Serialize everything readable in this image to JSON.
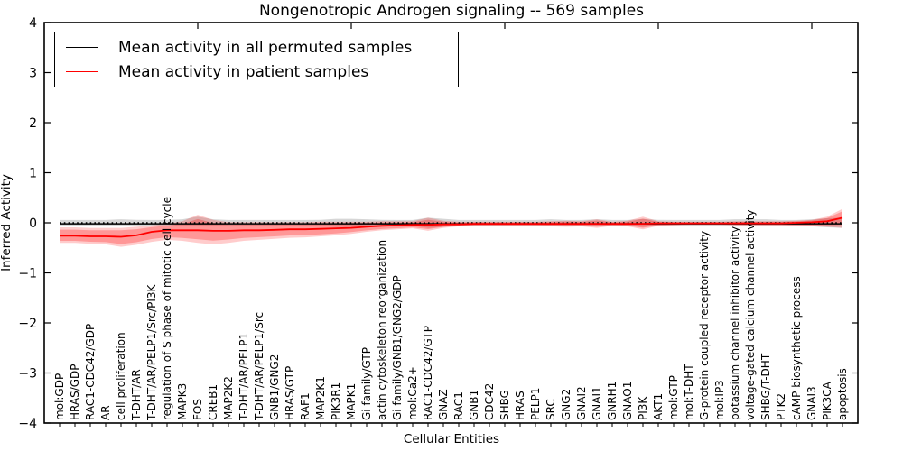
{
  "page": {
    "background": "#ffffff"
  },
  "legend": {
    "entries": [
      {
        "label": "Mean activity in all permuted samples",
        "color": "#000000"
      },
      {
        "label": "Mean activity in patient samples",
        "color": "#ff0000"
      }
    ]
  },
  "chart_data": {
    "type": "line",
    "title": "Nongenotropic Androgen signaling -- 569 samples",
    "xlabel": "Cellular Entities",
    "ylabel": "Inferred Activity",
    "ylim": [
      -4,
      4
    ],
    "yticks": [
      4,
      3,
      2,
      1,
      0,
      -1,
      -2,
      -3,
      -4
    ],
    "ytick_labels": [
      "4",
      "3",
      "2",
      "1",
      "0",
      "−1",
      "−2",
      "−3",
      "−4"
    ],
    "xticks_top_positions": [
      10,
      20,
      30,
      40,
      50
    ],
    "grid": false,
    "legend_position": "upper-left",
    "zero_line": {
      "y": 0,
      "style": "dotted",
      "color": "#000000"
    },
    "categories": [
      "mol:GDP",
      "HRAS/GDP",
      "RAC1-CDC42/GDP",
      "AR",
      "cell proliferation",
      "T-DHT/AR",
      "T-DHT/AR/PELP1/Src/PI3K",
      "regulation of S phase of mitotic cell cycle",
      "MAPK3",
      "FOS",
      "CREB1",
      "MAP2K2",
      "T-DHT/AR/PELP1",
      "T-DHT/AR/PELP1/Src",
      "GNB1/GNG2",
      "HRAS/GTP",
      "RAF1",
      "MAP2K1",
      "PIK3R1",
      "MAPK1",
      "Gi family/GTP",
      "actin cytoskeleton reorganization",
      "Gi family/GNB1/GNG2/GDP",
      "mol:Ca2+",
      "RAC1-CDC42/GTP",
      "GNAZ",
      "RAC1",
      "GNB1",
      "CDC42",
      "SHBG",
      "HRAS",
      "PELP1",
      "SRC",
      "GNG2",
      "GNAI2",
      "GNAI1",
      "GNRH1",
      "GNAO1",
      "PI3K",
      "AKT1",
      "mol:GTP",
      "mol:T-DHT",
      "G-protein coupled receptor activity",
      "mol:IP3",
      "potassium channel inhibitor activity",
      "voltage-gated calcium channel activity",
      "SHBG/T-DHT",
      "PTK2",
      "cAMP biosynthetic process",
      "GNAI3",
      "PIK3CA",
      "apoptosis"
    ],
    "series": [
      {
        "name": "Mean activity in all permuted samples",
        "color": "#000000",
        "band_color": "#000000",
        "band_opacity": 0.16,
        "values": [
          -0.02,
          -0.02,
          -0.02,
          -0.02,
          -0.02,
          -0.02,
          -0.02,
          -0.02,
          -0.02,
          -0.02,
          -0.02,
          -0.02,
          -0.02,
          -0.02,
          -0.02,
          -0.02,
          -0.02,
          -0.02,
          -0.02,
          -0.02,
          -0.02,
          -0.02,
          -0.02,
          -0.02,
          -0.02,
          -0.02,
          -0.02,
          -0.02,
          -0.02,
          -0.02,
          -0.02,
          -0.02,
          -0.02,
          -0.02,
          -0.02,
          -0.02,
          -0.02,
          -0.02,
          -0.02,
          -0.02,
          -0.02,
          -0.02,
          -0.02,
          -0.02,
          -0.02,
          -0.02,
          -0.02,
          -0.02,
          -0.02,
          -0.02,
          -0.02,
          -0.02
        ],
        "band_low": [
          -0.055,
          -0.055,
          -0.055,
          -0.055,
          -0.07,
          -0.06,
          -0.055,
          -0.055,
          -0.06,
          -0.07,
          -0.06,
          -0.055,
          -0.055,
          -0.055,
          -0.055,
          -0.055,
          -0.055,
          -0.06,
          -0.08,
          -0.08,
          -0.07,
          -0.06,
          -0.055,
          -0.055,
          -0.1,
          -0.08,
          -0.055,
          -0.055,
          -0.055,
          -0.055,
          -0.055,
          -0.055,
          -0.07,
          -0.055,
          -0.055,
          -0.07,
          -0.055,
          -0.055,
          -0.08,
          -0.06,
          -0.055,
          -0.055,
          -0.055,
          -0.055,
          -0.07,
          -0.07,
          -0.07,
          -0.055,
          -0.055,
          -0.07,
          -0.09,
          -0.1
        ],
        "band_high": [
          0.055,
          0.055,
          0.055,
          0.055,
          0.07,
          0.06,
          0.055,
          0.055,
          0.07,
          0.12,
          0.07,
          0.055,
          0.055,
          0.055,
          0.055,
          0.055,
          0.055,
          0.06,
          0.08,
          0.08,
          0.07,
          0.06,
          0.055,
          0.055,
          0.1,
          0.08,
          0.055,
          0.055,
          0.055,
          0.055,
          0.055,
          0.055,
          0.07,
          0.055,
          0.055,
          0.07,
          0.055,
          0.055,
          0.08,
          0.06,
          0.055,
          0.055,
          0.055,
          0.055,
          0.07,
          0.07,
          0.07,
          0.055,
          0.055,
          0.07,
          0.09,
          0.1
        ]
      },
      {
        "name": "Mean activity in patient samples",
        "color": "#ff0000",
        "band_color": "#ff0000",
        "band_opacity": 0.2,
        "inner_band_factor": 0.72,
        "values": [
          -0.26,
          -0.26,
          -0.27,
          -0.27,
          -0.28,
          -0.25,
          -0.18,
          -0.15,
          -0.15,
          -0.15,
          -0.16,
          -0.16,
          -0.15,
          -0.15,
          -0.14,
          -0.13,
          -0.13,
          -0.12,
          -0.11,
          -0.1,
          -0.08,
          -0.06,
          -0.05,
          -0.04,
          -0.04,
          -0.03,
          -0.03,
          -0.02,
          -0.02,
          -0.02,
          -0.02,
          -0.02,
          -0.02,
          -0.02,
          -0.02,
          -0.02,
          -0.02,
          -0.02,
          -0.02,
          -0.01,
          -0.01,
          -0.01,
          -0.01,
          -0.01,
          -0.01,
          -0.01,
          -0.01,
          -0.01,
          0.0,
          0.01,
          0.03,
          0.1
        ],
        "band_low": [
          -0.4,
          -0.4,
          -0.42,
          -0.43,
          -0.48,
          -0.44,
          -0.38,
          -0.34,
          -0.36,
          -0.4,
          -0.43,
          -0.4,
          -0.36,
          -0.34,
          -0.32,
          -0.3,
          -0.29,
          -0.27,
          -0.25,
          -0.22,
          -0.18,
          -0.15,
          -0.13,
          -0.11,
          -0.16,
          -0.1,
          -0.07,
          -0.06,
          -0.06,
          -0.06,
          -0.06,
          -0.06,
          -0.07,
          -0.08,
          -0.07,
          -0.1,
          -0.06,
          -0.07,
          -0.13,
          -0.06,
          -0.05,
          -0.04,
          -0.04,
          -0.04,
          -0.05,
          -0.05,
          -0.05,
          -0.05,
          -0.06,
          -0.07,
          -0.08,
          -0.1
        ],
        "band_high": [
          -0.09,
          -0.09,
          -0.1,
          -0.1,
          -0.1,
          -0.08,
          -0.05,
          -0.02,
          0.03,
          0.16,
          0.06,
          0.01,
          0.01,
          0.01,
          0.01,
          0.01,
          0.01,
          0.02,
          0.02,
          0.02,
          0.02,
          0.03,
          0.03,
          0.03,
          0.1,
          0.04,
          0.02,
          0.02,
          0.02,
          0.02,
          0.02,
          0.02,
          0.03,
          0.04,
          0.03,
          0.07,
          0.02,
          0.04,
          0.12,
          0.03,
          0.02,
          0.02,
          0.02,
          0.02,
          0.03,
          0.03,
          0.03,
          0.03,
          0.04,
          0.06,
          0.12,
          0.28
        ]
      }
    ]
  }
}
